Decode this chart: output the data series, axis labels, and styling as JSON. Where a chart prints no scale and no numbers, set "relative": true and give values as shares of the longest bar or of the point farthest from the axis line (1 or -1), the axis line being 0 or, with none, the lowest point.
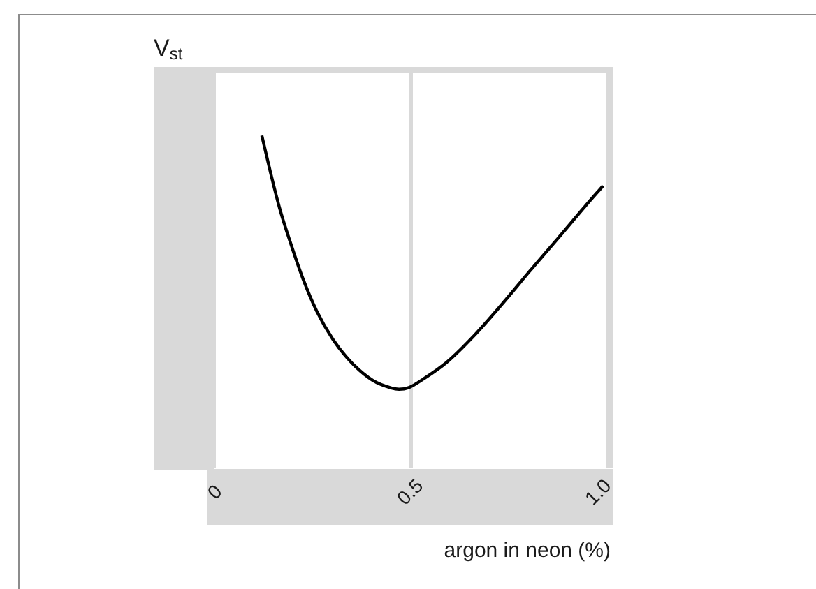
{
  "chart_data": {
    "type": "line",
    "ylabel": "V$_{st}$",
    "xlabel": "argon in neon (%)",
    "x": [
      0.122,
      0.143,
      0.167,
      0.197,
      0.226,
      0.261,
      0.302,
      0.349,
      0.403,
      0.45,
      0.47,
      0.495,
      0.532,
      0.591,
      0.661,
      0.732,
      0.802,
      0.873,
      0.943,
      0.988
    ],
    "series": [
      {
        "color": "#000000",
        "values": [
          1.0,
          0.894,
          0.782,
          0.669,
          0.57,
          0.472,
          0.387,
          0.317,
          0.263,
          0.24,
          0.236,
          0.241,
          0.267,
          0.317,
          0.398,
          0.493,
          0.592,
          0.69,
          0.788,
          0.849
        ]
      }
    ],
    "relative": true,
    "xlim": [
      0,
      1
    ],
    "xticks": [
      0,
      0.5,
      {
        "value": 1,
        "label": "1.0"
      }
    ],
    "grid": "x",
    "marker": "none",
    "line_style": "solid"
  }
}
